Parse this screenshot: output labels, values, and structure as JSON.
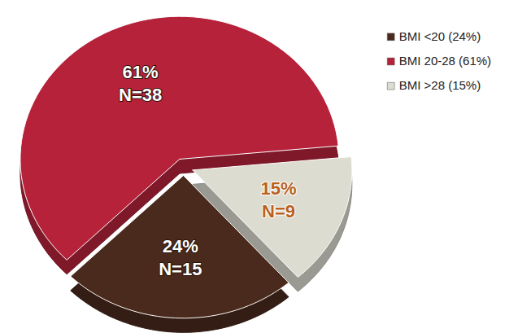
{
  "chart_data": {
    "type": "pie",
    "categories": [
      "BMI <20 (24%)",
      "BMI 20-28 (61%)",
      "BMI >28 (15%)"
    ],
    "values": [
      24,
      61,
      15
    ],
    "value_labels": [
      "24%",
      "61%",
      "15%"
    ],
    "n_labels": [
      "N=15",
      "N=38",
      "N=9"
    ],
    "colors": [
      "#4a2a1c",
      "#b5223a",
      "#dcdcd0"
    ],
    "data_labels": true,
    "legend": "top-right"
  }
}
